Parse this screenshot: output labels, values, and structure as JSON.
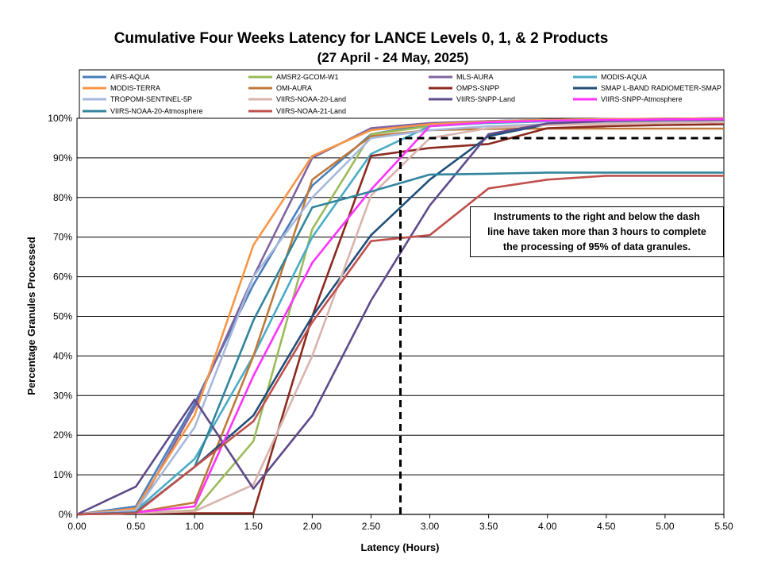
{
  "title": "Cumulative Four Weeks Latency  for LANCE Levels 0, 1, & 2 Products",
  "subtitle": "(27  April   -  24  May,  2025)",
  "annotation": {
    "line1": "Instruments to the right and below the dash",
    "line2": "line have taken more than 3 hours to complete",
    "line3": "the processing of 95% of data granules."
  },
  "chart_data": {
    "type": "line",
    "xlabel": "Latency (Hours)",
    "ylabel": "Percentage Granules Processed",
    "xlim": [
      0,
      5.5
    ],
    "ylim": [
      0,
      100
    ],
    "x_ticks": [
      "0.00",
      "0.50",
      "1.00",
      "1.50",
      "2.00",
      "2.50",
      "3.00",
      "3.50",
      "4.00",
      "4.50",
      "5.00",
      "5.50"
    ],
    "y_ticks": [
      "0%",
      "10%",
      "20%",
      "30%",
      "40%",
      "50%",
      "60%",
      "70%",
      "80%",
      "90%",
      "100%"
    ],
    "grid": "horizontal",
    "legend_position": "top",
    "x": [
      0,
      0.5,
      1.0,
      1.5,
      2.0,
      2.5,
      3.0,
      3.5,
      4.0,
      4.5,
      5.0,
      5.5
    ],
    "threshold_line": {
      "x": 2.75,
      "y": 95,
      "style": "dashed"
    },
    "series": [
      {
        "name": "AIRS-AQUA",
        "color": "#4a7ebb",
        "values": [
          0,
          2,
          28,
          58,
          83,
          96,
          98.5,
          99.3,
          99.6,
          99.8,
          99.9,
          100
        ]
      },
      {
        "name": "AMSR2-GCOM-W1",
        "color": "#9bbb59",
        "values": [
          0,
          0.3,
          1,
          18.5,
          72,
          96,
          98,
          99,
          99.5,
          99.7,
          99.8,
          99.9
        ]
      },
      {
        "name": "MLS-AURA",
        "color": "#8064a2",
        "values": [
          0,
          0.5,
          27,
          60,
          90,
          97.5,
          98.8,
          99.3,
          99.6,
          99.8,
          99.9,
          100
        ]
      },
      {
        "name": "MODIS-AQUA",
        "color": "#4bacc6",
        "values": [
          0,
          1,
          14,
          40,
          70,
          91,
          98,
          98.8,
          99.2,
          99.5,
          99.7,
          99.8
        ]
      },
      {
        "name": "MODIS-TERRA",
        "color": "#f79646",
        "values": [
          0,
          1.5,
          25,
          68,
          90.5,
          97,
          98.5,
          99.2,
          99.6,
          99.8,
          99.9,
          100
        ]
      },
      {
        "name": "OMI-AURA",
        "color": "#c0783a",
        "values": [
          0,
          0.5,
          3,
          40,
          84.5,
          95.5,
          97,
          97.3,
          97.4,
          97.4,
          97.4,
          97.4
        ]
      },
      {
        "name": "OMPS-SNPP",
        "color": "#8b2a1f",
        "values": [
          0,
          0.3,
          0.3,
          0.3,
          50,
          90.5,
          92.5,
          93.5,
          97.5,
          98,
          98.3,
          98.5
        ]
      },
      {
        "name": "SMAP L-BAND RADIOMETER-SMAP",
        "color": "#1f4e79",
        "values": [
          0,
          0.5,
          12,
          25,
          50,
          70.5,
          84.5,
          95.5,
          98.5,
          99.5,
          99.7,
          99.8
        ]
      },
      {
        "name": "TROPOMI-SENTINEL-5P",
        "color": "#a6b8dc",
        "values": [
          0,
          1,
          22,
          60,
          80,
          95,
          97,
          98,
          98.5,
          98.8,
          99,
          99
        ]
      },
      {
        "name": "VIIRS-NOAA-20-Land",
        "color": "#d9b3ad",
        "values": [
          0,
          0.3,
          0.8,
          7.5,
          40,
          80.5,
          95,
          97.5,
          98.3,
          98.6,
          98.8,
          99
        ]
      },
      {
        "name": "VIIRS-SNPP-Land",
        "color": "#5f4b8b",
        "values": [
          0,
          7,
          29,
          6.5,
          25,
          54,
          78,
          96,
          98.7,
          99.3,
          99.5,
          99.6
        ]
      },
      {
        "name": "VIIRS-SNPP-Atmosphere",
        "color": "#ff33ff",
        "values": [
          0,
          0.5,
          2,
          35,
          63.5,
          82,
          98,
          99,
          99.4,
          99.6,
          99.7,
          99.8
        ]
      },
      {
        "name": "VIIRS-NOAA-20-Atmosphere",
        "color": "#31859c",
        "values": [
          0,
          0.5,
          12,
          49,
          77.5,
          81.5,
          85.8,
          86,
          86.3,
          86.3,
          86.3,
          86.3
        ]
      },
      {
        "name": "VIIRS-NOAA-21-Land",
        "color": "#c0504d",
        "values": [
          0,
          0.3,
          12,
          23.5,
          48.5,
          69,
          70.5,
          82.3,
          84.5,
          85.5,
          85.5,
          85.5
        ]
      }
    ]
  }
}
